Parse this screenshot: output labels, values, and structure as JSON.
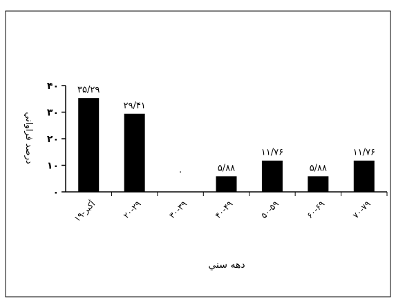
{
  "chart_data": {
    "type": "bar",
    "categories": [
      "۱۹-أكبر",
      "۲۰-۲۹",
      "۳۰-۳۹",
      "۴۰-۴۹",
      "۵۰-۵۹",
      "۶۰-۶۹",
      "۷۰-۷۹"
    ],
    "values": [
      35.29,
      29.41,
      0,
      5.88,
      11.76,
      5.88,
      11.76
    ],
    "data_labels": [
      "۳۵/۲۹",
      "۲۹/۴۱",
      ".",
      "۵/۸۸",
      "۱۱/۷۶",
      "۵/۸۸",
      "۱۱/۷۶"
    ],
    "ylabel": "درصد فراواني",
    "xlabel": "دهه سني",
    "ylim": [
      0,
      40
    ],
    "yticks": [
      0,
      10,
      20,
      30,
      40
    ],
    "ytick_labels": [
      "۰",
      "۱۰",
      "۲۰",
      "۳۰",
      "۴۰"
    ],
    "bar_color": "#000000",
    "grid": false,
    "legend": "none"
  }
}
